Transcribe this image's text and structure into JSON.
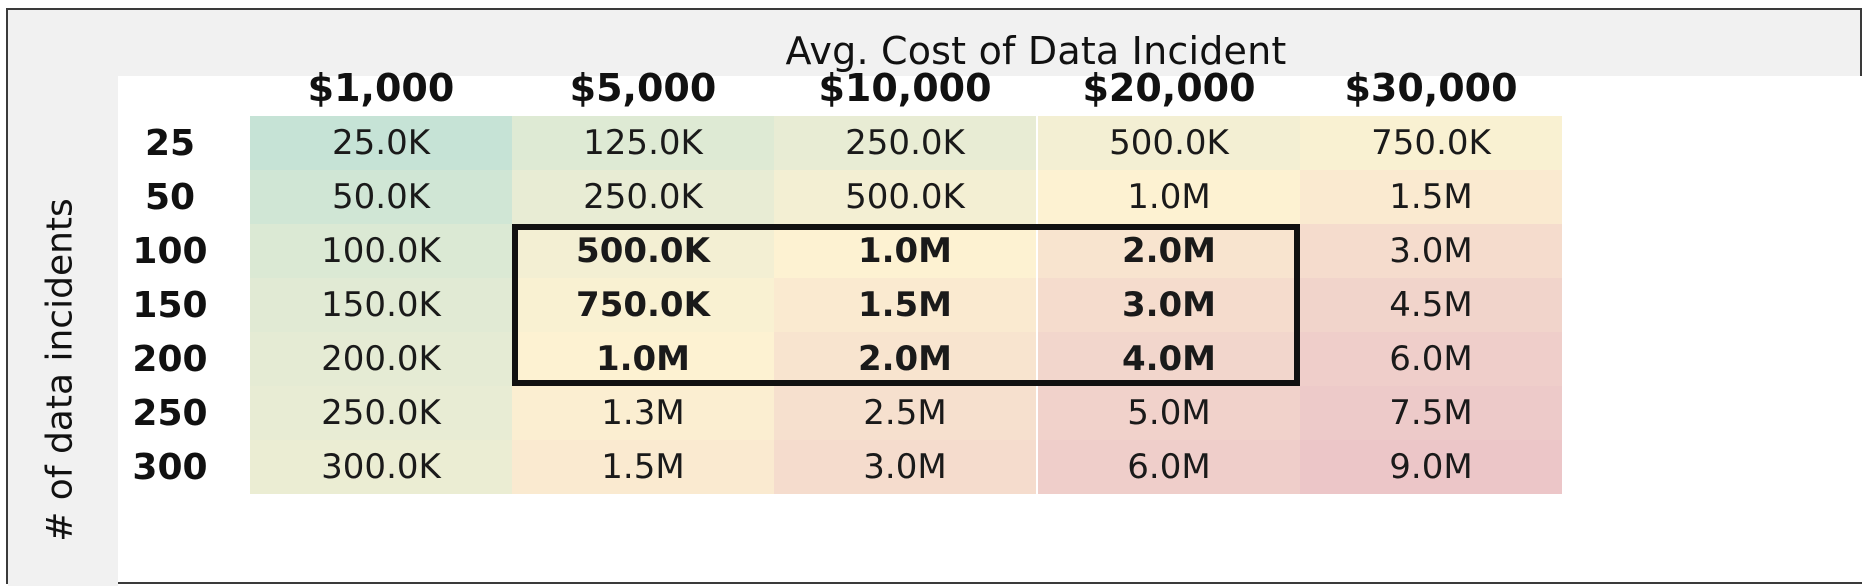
{
  "chart_data": {
    "type": "heatmap",
    "title": "Avg. Cost of Data Incident",
    "xlabel": "Avg. Cost of Data Incident",
    "ylabel": "# of data incidents",
    "columns": [
      "$1,000",
      "$5,000",
      "$10,000",
      "$20,000",
      "$30,000"
    ],
    "rows": [
      "25",
      "50",
      "100",
      "150",
      "200",
      "250",
      "300"
    ],
    "cells": [
      [
        "25.0K",
        "125.0K",
        "250.0K",
        "500.0K",
        "750.0K"
      ],
      [
        "50.0K",
        "250.0K",
        "500.0K",
        "1.0M",
        "1.5M"
      ],
      [
        "100.0K",
        "500.0K",
        "1.0M",
        "2.0M",
        "3.0M"
      ],
      [
        "150.0K",
        "750.0K",
        "1.5M",
        "3.0M",
        "4.5M"
      ],
      [
        "200.0K",
        "1.0M",
        "2.0M",
        "4.0M",
        "6.0M"
      ],
      [
        "250.0K",
        "1.3M",
        "2.5M",
        "5.0M",
        "7.5M"
      ],
      [
        "300.0K",
        "1.5M",
        "3.0M",
        "6.0M",
        "9.0M"
      ]
    ],
    "values": [
      [
        25000,
        125000,
        250000,
        500000,
        750000
      ],
      [
        50000,
        250000,
        500000,
        1000000,
        1500000
      ],
      [
        100000,
        500000,
        1000000,
        2000000,
        3000000
      ],
      [
        150000,
        750000,
        1500000,
        3000000,
        4500000
      ],
      [
        200000,
        1000000,
        2000000,
        4000000,
        6000000
      ],
      [
        250000,
        1250000,
        2500000,
        5000000,
        7500000
      ],
      [
        300000,
        1500000,
        3000000,
        6000000,
        9000000
      ]
    ],
    "highlight": {
      "row_start": 2,
      "row_end": 4,
      "col_start": 1,
      "col_end": 3
    },
    "colorscale": {
      "low": "#c6e3d6",
      "mid": "#fdf2d2",
      "high": "#ecc6c8"
    }
  }
}
